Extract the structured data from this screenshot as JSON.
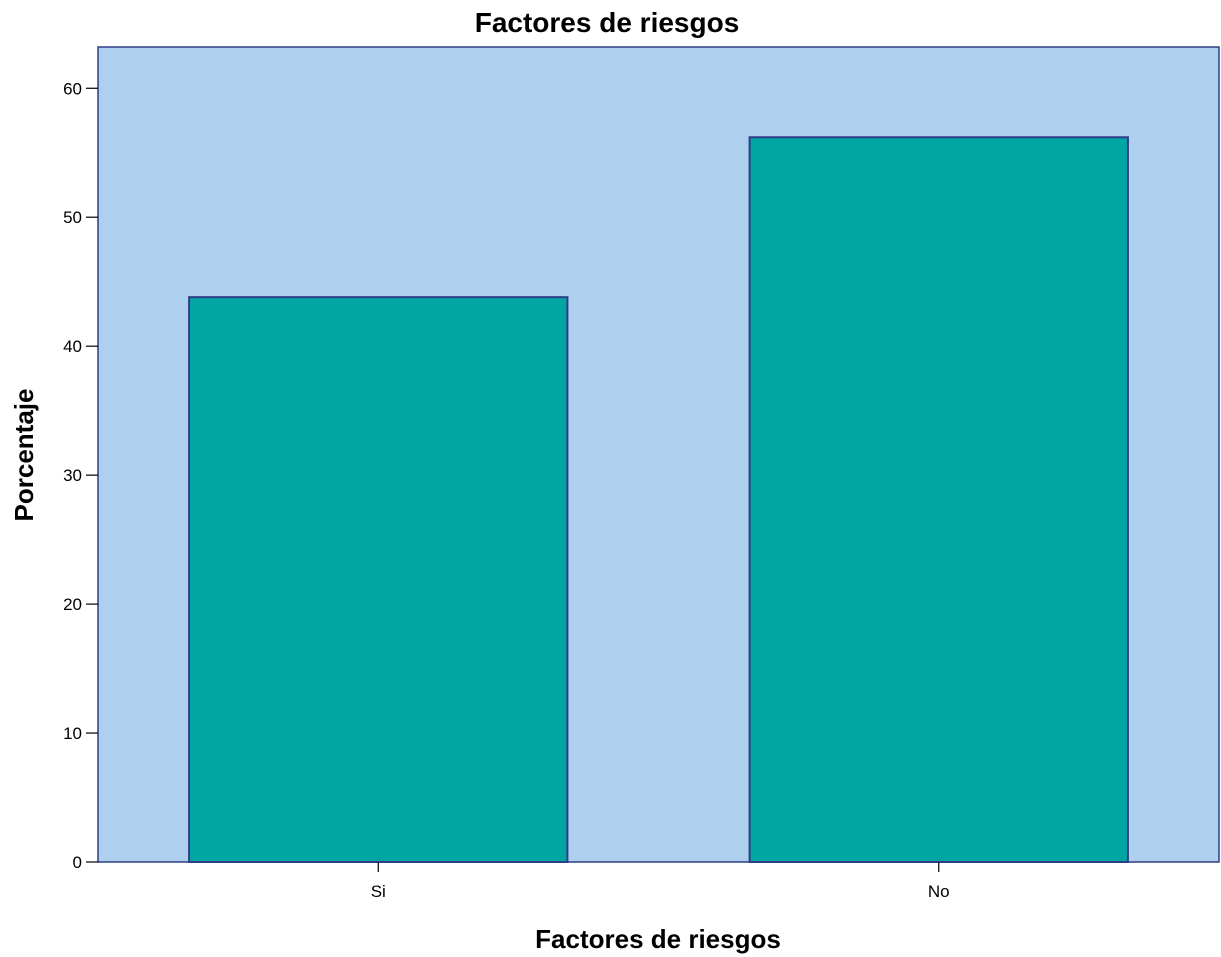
{
  "chart_data": {
    "type": "bar",
    "title": "Factores de riesgos",
    "xlabel": "Factores de riesgos",
    "ylabel": "Porcentaje",
    "categories": [
      "Si",
      "No"
    ],
    "values": [
      43.8,
      56.2
    ],
    "ylim": [
      0,
      63.2
    ],
    "yticks": [
      "0",
      "10",
      "20",
      "30",
      "40",
      "50",
      "60"
    ],
    "grid": false,
    "legend": "none",
    "colors": {
      "plot_background": "#AECFED",
      "bar_fill": "#00A6A4",
      "bar_stroke": "#2E3E86",
      "frame": "#2E3E86"
    }
  }
}
